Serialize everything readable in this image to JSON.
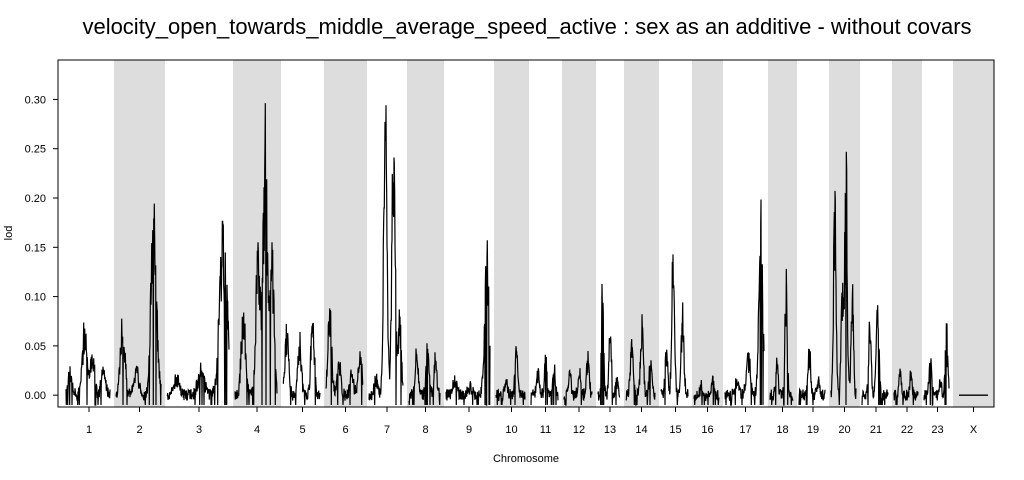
{
  "chart_data": {
    "type": "line",
    "title": "velocity_open_towards_middle_average_speed_active : sex as an additive - without covars",
    "xlabel": "Chromosome",
    "ylabel": "lod",
    "ylim": [
      -0.012,
      0.34
    ],
    "yticks": [
      "0.00",
      "0.05",
      "0.10",
      "0.15",
      "0.20",
      "0.25",
      "0.30"
    ],
    "grid": false,
    "legend": "none",
    "band_color": "#dddddd",
    "line_color": "#000000",
    "chromosomes": [
      {
        "name": "1",
        "peaks": [
          [
            0.1,
            0.026
          ],
          [
            0.42,
            0.08
          ],
          [
            0.6,
            0.05
          ],
          [
            0.85,
            0.03
          ]
        ]
      },
      {
        "name": "2",
        "peaks": [
          [
            0.15,
            0.087
          ],
          [
            0.45,
            0.03
          ],
          [
            0.82,
            0.2
          ],
          [
            0.9,
            0.06
          ]
        ]
      },
      {
        "name": "3",
        "peaks": [
          [
            0.15,
            0.02
          ],
          [
            0.55,
            0.03
          ],
          [
            0.88,
            0.135
          ],
          [
            0.95,
            0.1
          ]
        ]
      },
      {
        "name": "4",
        "peaks": [
          [
            0.2,
            0.1
          ],
          [
            0.55,
            0.172
          ],
          [
            0.72,
            0.295
          ],
          [
            0.88,
            0.17
          ]
        ]
      },
      {
        "name": "5",
        "peaks": [
          [
            0.1,
            0.075
          ],
          [
            0.45,
            0.06
          ],
          [
            0.8,
            0.088
          ]
        ]
      },
      {
        "name": "6",
        "peaks": [
          [
            0.1,
            0.106
          ],
          [
            0.35,
            0.04
          ],
          [
            0.7,
            0.025
          ],
          [
            0.92,
            0.05
          ]
        ]
      },
      {
        "name": "7",
        "peaks": [
          [
            0.2,
            0.02
          ],
          [
            0.48,
            0.328
          ],
          [
            0.72,
            0.303
          ],
          [
            0.9,
            0.088
          ]
        ]
      },
      {
        "name": "8",
        "peaks": [
          [
            0.25,
            0.05
          ],
          [
            0.6,
            0.06
          ],
          [
            0.85,
            0.04
          ]
        ]
      },
      {
        "name": "9",
        "peaks": [
          [
            0.2,
            0.015
          ],
          [
            0.55,
            0.01
          ],
          [
            0.93,
            0.166
          ]
        ]
      },
      {
        "name": "10",
        "peaks": [
          [
            0.35,
            0.015
          ],
          [
            0.7,
            0.054
          ]
        ]
      },
      {
        "name": "11",
        "peaks": [
          [
            0.25,
            0.03
          ],
          [
            0.55,
            0.045
          ],
          [
            0.85,
            0.03
          ]
        ]
      },
      {
        "name": "12",
        "peaks": [
          [
            0.2,
            0.03
          ],
          [
            0.55,
            0.03
          ],
          [
            0.85,
            0.045
          ]
        ]
      },
      {
        "name": "13",
        "peaks": [
          [
            0.2,
            0.122
          ],
          [
            0.55,
            0.092
          ],
          [
            0.85,
            0.02
          ]
        ]
      },
      {
        "name": "14",
        "peaks": [
          [
            0.2,
            0.06
          ],
          [
            0.55,
            0.085
          ],
          [
            0.85,
            0.04
          ]
        ]
      },
      {
        "name": "15",
        "peaks": [
          [
            0.2,
            0.05
          ],
          [
            0.45,
            0.172
          ],
          [
            0.8,
            0.103
          ]
        ]
      },
      {
        "name": "16",
        "peaks": [
          [
            0.3,
            0.01
          ],
          [
            0.75,
            0.02
          ]
        ]
      },
      {
        "name": "17",
        "peaks": [
          [
            0.3,
            0.015
          ],
          [
            0.6,
            0.05
          ],
          [
            0.92,
            0.197
          ]
        ]
      },
      {
        "name": "18",
        "peaks": [
          [
            0.3,
            0.04
          ],
          [
            0.7,
            0.13
          ]
        ]
      },
      {
        "name": "19",
        "peaks": [
          [
            0.4,
            0.052
          ],
          [
            0.75,
            0.02
          ]
        ]
      },
      {
        "name": "20",
        "peaks": [
          [
            0.15,
            0.232
          ],
          [
            0.45,
            0.13
          ],
          [
            0.6,
            0.267
          ],
          [
            0.85,
            0.13
          ]
        ]
      },
      {
        "name": "21",
        "peaks": [
          [
            0.3,
            0.08
          ],
          [
            0.6,
            0.13
          ]
        ]
      },
      {
        "name": "22",
        "peaks": [
          [
            0.25,
            0.03
          ],
          [
            0.7,
            0.025
          ]
        ]
      },
      {
        "name": "23",
        "peaks": [
          [
            0.25,
            0.045
          ],
          [
            0.65,
            0.015
          ],
          [
            0.9,
            0.075
          ]
        ]
      },
      {
        "name": "X",
        "peaks": [
          [
            0.5,
            0.0
          ]
        ]
      }
    ]
  }
}
